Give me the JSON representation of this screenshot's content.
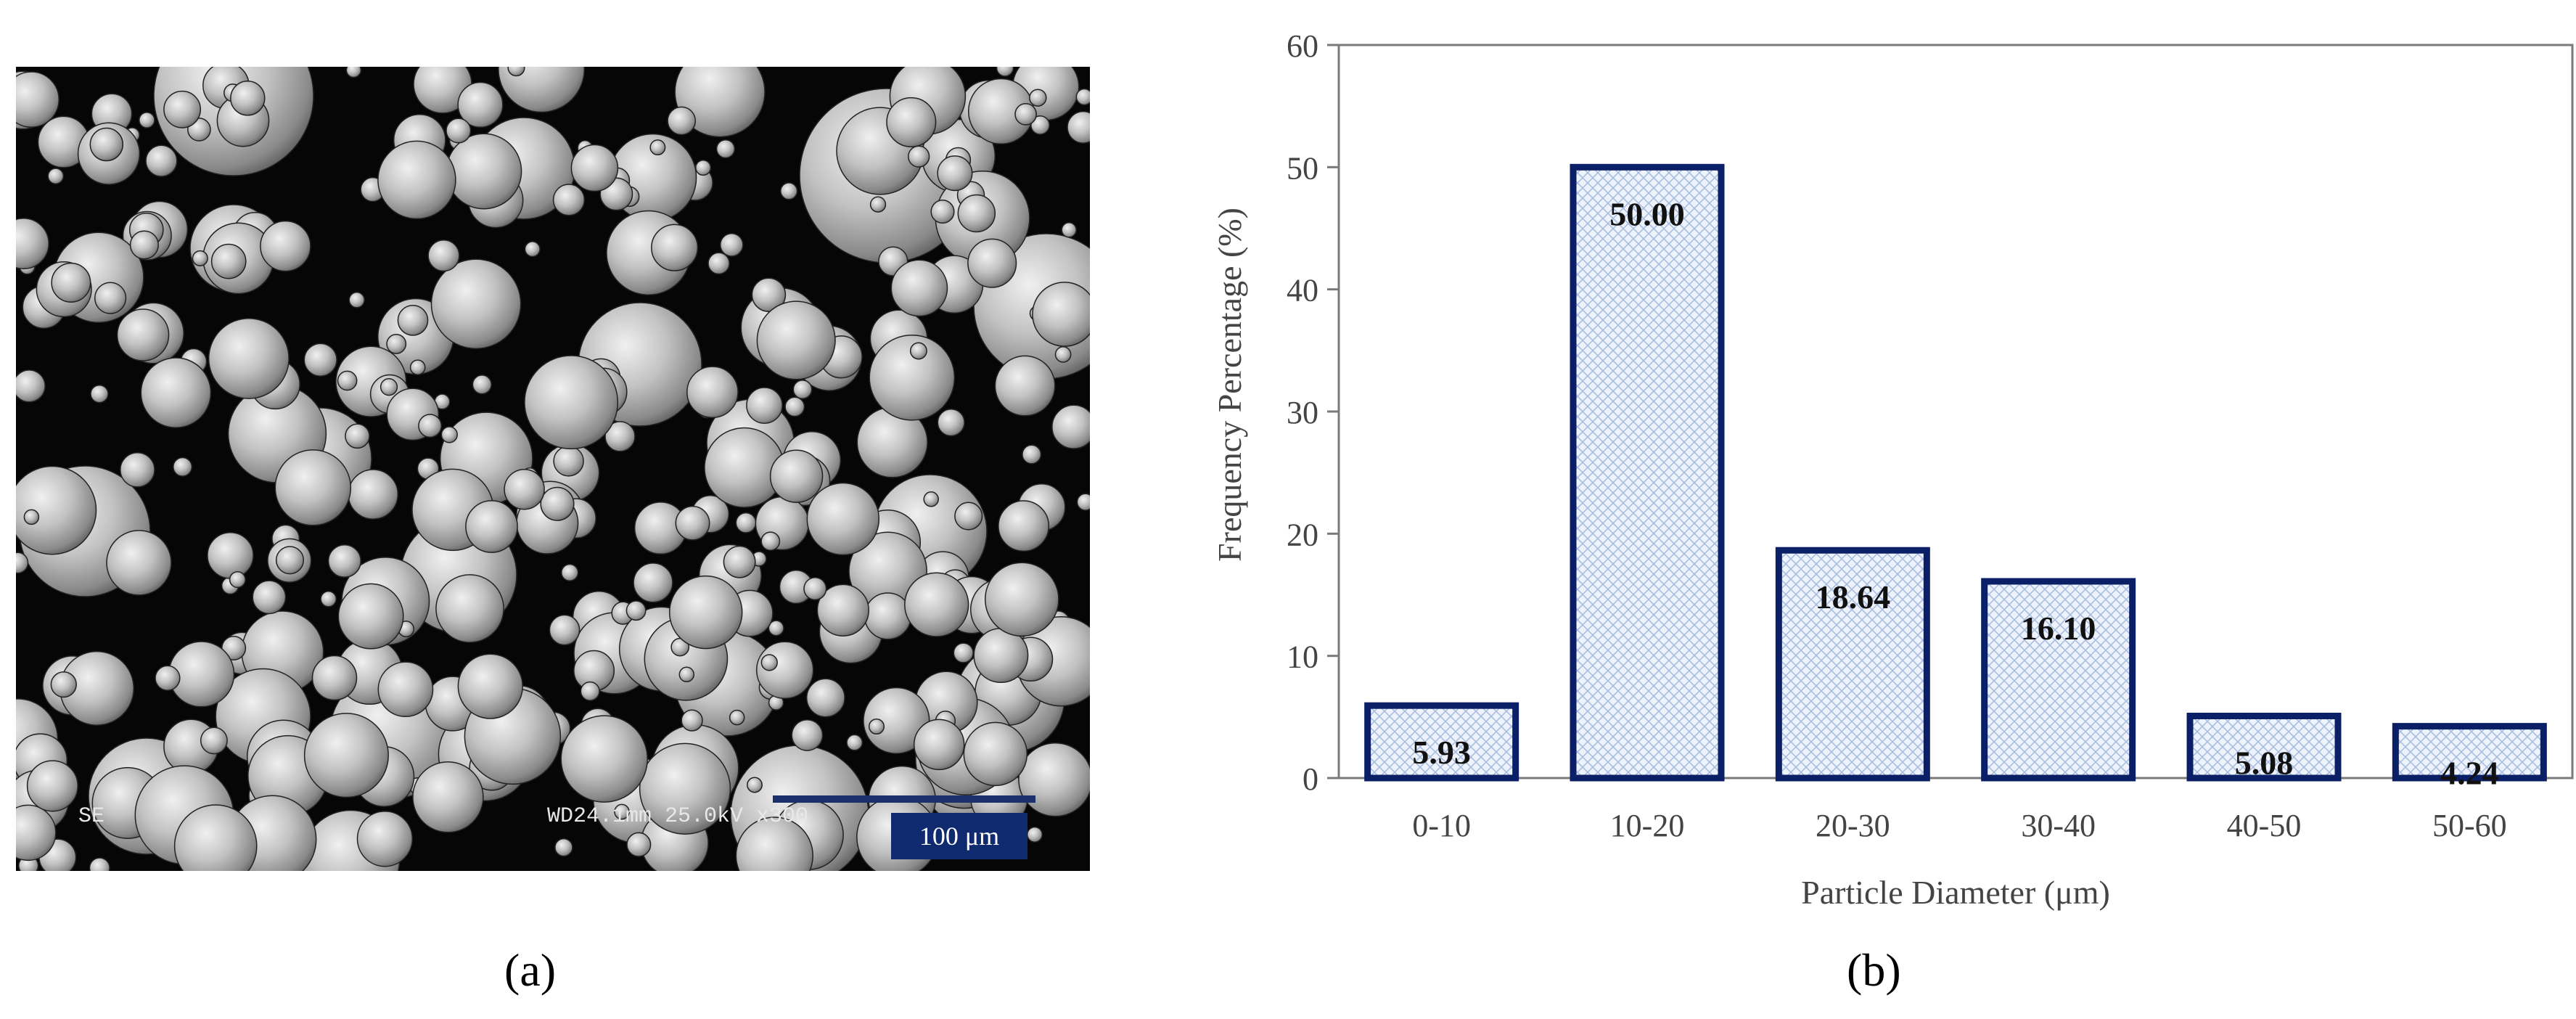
{
  "panels": {
    "a": {
      "label": "(a)",
      "sem": {
        "detector": "SE",
        "params": "WD24.1mm 25.0kV x300",
        "scale_label": "100 μm"
      }
    },
    "b": {
      "label": "(b)"
    }
  },
  "chart_data": {
    "type": "bar",
    "title": "",
    "xlabel": "Particle Diameter (μm)",
    "ylabel": "Frequency Percentage (%)",
    "categories": [
      "0-10",
      "10-20",
      "20-30",
      "30-40",
      "40-50",
      "50-60"
    ],
    "values": [
      5.93,
      50.0,
      18.64,
      16.1,
      5.08,
      4.24
    ],
    "data_labels": [
      "5.93",
      "50.00",
      "18.64",
      "16.10",
      "5.08",
      "4.24"
    ],
    "ylim": [
      0,
      60
    ],
    "yticks": [
      0,
      10,
      20,
      30,
      40,
      50,
      60
    ],
    "grid": false,
    "legend": "none",
    "bar_edge_color": "#0a1f66",
    "bar_fill_pattern": "light-blue-crosshatch"
  }
}
